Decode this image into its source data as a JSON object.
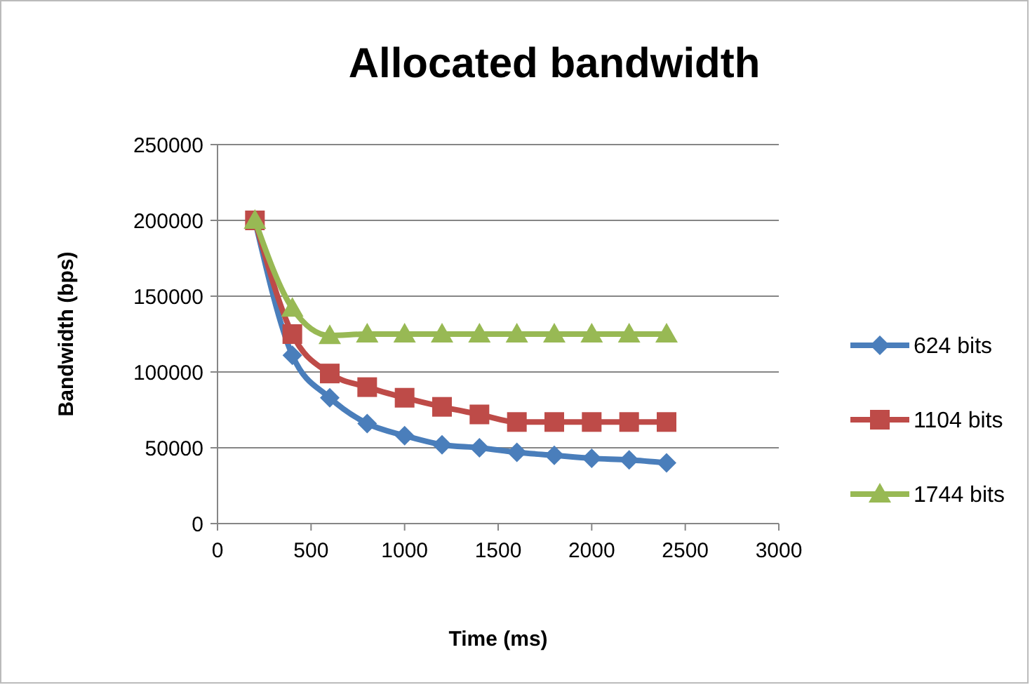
{
  "chart_data": {
    "type": "line",
    "title": "Allocated bandwidth",
    "xlabel": "Time (ms)",
    "ylabel": "Bandwidth (bps)",
    "x": [
      200,
      400,
      600,
      800,
      1000,
      1200,
      1400,
      1600,
      1800,
      2000,
      2200,
      2400
    ],
    "series": [
      {
        "name": "624 bits",
        "color": "#4a7ebb",
        "marker": "diamond",
        "values": [
          200000,
          111000,
          83000,
          66000,
          58000,
          52000,
          50000,
          47000,
          45000,
          43000,
          42000,
          40000
        ]
      },
      {
        "name": "1104 bits",
        "color": "#be4b48",
        "marker": "square",
        "values": [
          200000,
          125000,
          99000,
          90000,
          83000,
          77000,
          72000,
          67000,
          67000,
          67000,
          67000,
          67000
        ]
      },
      {
        "name": "1744 bits",
        "color": "#98b954",
        "marker": "triangle",
        "values": [
          200000,
          142000,
          124000,
          125000,
          125000,
          125000,
          125000,
          125000,
          125000,
          125000,
          125000,
          125000
        ]
      }
    ],
    "xlim": [
      0,
      3000
    ],
    "xticks": [
      0,
      500,
      1000,
      1500,
      2000,
      2500,
      3000
    ],
    "ylim": [
      0,
      250000
    ],
    "yticks": [
      0,
      50000,
      100000,
      150000,
      200000,
      250000
    ],
    "grid": "y",
    "legend": "right"
  }
}
